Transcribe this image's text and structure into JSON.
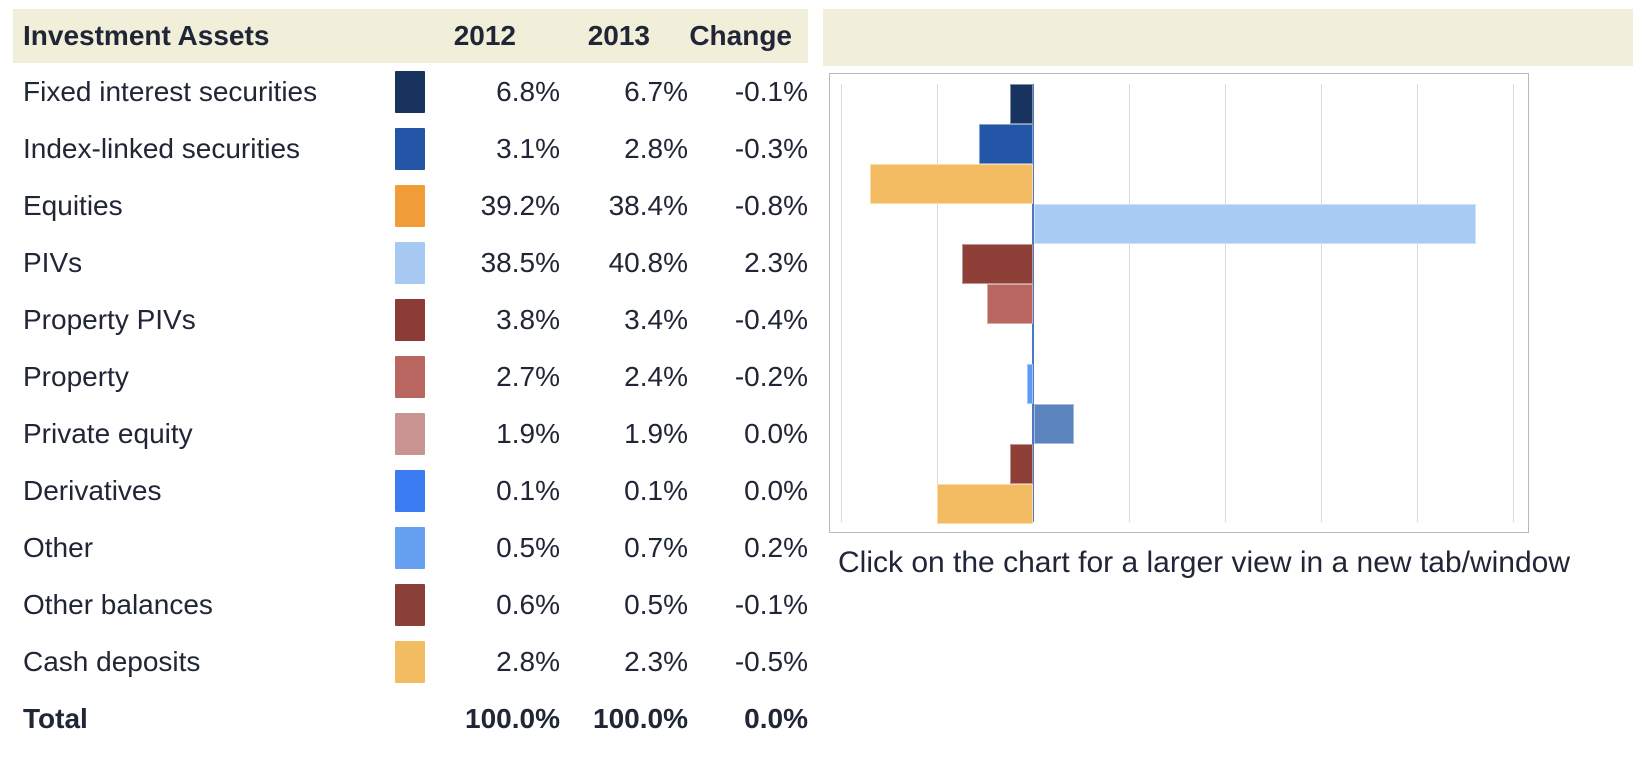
{
  "table": {
    "headers": {
      "assets": "Investment Assets",
      "y2012": "2012",
      "y2013": "2013",
      "change": "Change"
    },
    "rows": [
      {
        "label": "Fixed interest securities",
        "color": "#17335e",
        "v2012": "6.8%",
        "v2013": "6.7%",
        "change": "-0.1%"
      },
      {
        "label": "Index-linked securities",
        "color": "#2456a8",
        "v2012": "3.1%",
        "v2013": "2.8%",
        "change": "-0.3%"
      },
      {
        "label": "Equities",
        "color": "#f09d38",
        "v2012": "39.2%",
        "v2013": "38.4%",
        "change": "-0.8%"
      },
      {
        "label": "PIVs",
        "color": "#a8c9f2",
        "v2012": "38.5%",
        "v2013": "40.8%",
        "change": "2.3%"
      },
      {
        "label": "Property PIVs",
        "color": "#8b3b35",
        "v2012": "3.8%",
        "v2013": "3.4%",
        "change": "-0.4%"
      },
      {
        "label": "Property",
        "color": "#b96560",
        "v2012": "2.7%",
        "v2013": "2.4%",
        "change": "-0.2%"
      },
      {
        "label": "Private equity",
        "color": "#c99492",
        "v2012": "1.9%",
        "v2013": "1.9%",
        "change": "0.0%"
      },
      {
        "label": "Derivatives",
        "color": "#3b7cf3",
        "v2012": "0.1%",
        "v2013": "0.1%",
        "change": "0.0%"
      },
      {
        "label": "Other",
        "color": "#66a0f1",
        "v2012": "0.5%",
        "v2013": "0.7%",
        "change": "0.2%"
      },
      {
        "label": "Other balances",
        "color": "#8a4038",
        "v2012": "0.6%",
        "v2013": "0.5%",
        "change": "-0.1%"
      },
      {
        "label": "Cash deposits",
        "color": "#f2bd62",
        "v2012": "2.8%",
        "v2013": "2.3%",
        "change": "-0.5%"
      }
    ],
    "total": {
      "label": "Total",
      "v2012": "100.0%",
      "v2013": "100.0%",
      "change": "0.0%"
    }
  },
  "chart_data": {
    "type": "bar",
    "orientation": "horizontal",
    "title": "",
    "categories": [
      "Fixed interest securities",
      "Index-linked securities",
      "Equities",
      "PIVs",
      "Property PIVs",
      "Property",
      "Private equity",
      "Derivatives",
      "Other",
      "Other balances",
      "Cash deposits"
    ],
    "values": [
      -0.12,
      -0.28,
      -0.85,
      2.3,
      -0.37,
      -0.24,
      0.0,
      -0.03,
      0.21,
      -0.12,
      -0.5
    ],
    "unit": "%",
    "xlabel": "",
    "ylabel": "",
    "xlim": [
      -1.0,
      2.5
    ],
    "gridline_step": 0.5,
    "grid": "vertical",
    "legend": "none",
    "bar_colors": [
      "#17335e",
      "#2456a8",
      "#f4bc62",
      "#a8cbf4",
      "#8e4038",
      "#b96560",
      "#c99492",
      "#5c9bf5",
      "#5b84be",
      "#8e4038",
      "#f4bc62"
    ],
    "zero_line_color": "#4a79c0"
  },
  "caption": {
    "text": "Click on the chart for a larger view in a new tab/window"
  },
  "theme": {
    "header_bg": "#f1eeda",
    "text_color": "#202636",
    "chart_border": "#b9b9b9",
    "gridline_color": "#d9d9d9"
  }
}
